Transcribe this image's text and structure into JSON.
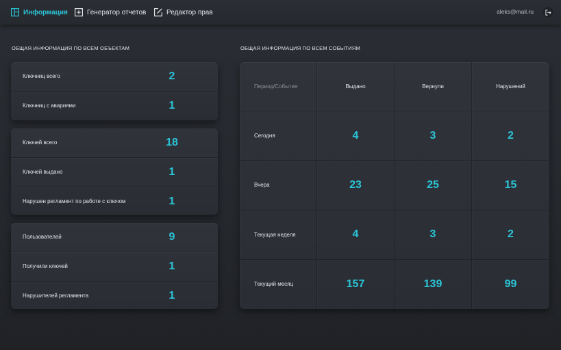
{
  "nav": {
    "items": [
      {
        "label": "Информация",
        "icon": "dashboard-icon",
        "active": true
      },
      {
        "label": "Генератор отчетов",
        "icon": "add-square-icon",
        "active": false
      },
      {
        "label": "Редактор прав",
        "icon": "edit-icon",
        "active": false
      }
    ],
    "user_email": "aleks@mail.ru",
    "logout_icon": "logout-icon"
  },
  "colors": {
    "accent": "#2bc4d7",
    "background": "#26292e",
    "card": "#2e3137"
  },
  "objects": {
    "title": "ОБЩАЯ ИНФОРМАЦИЯ ПО ВСЕМ ОБЪЕКТАМ",
    "cards": [
      {
        "rows": [
          {
            "label": "Ключниц всего",
            "value": "2"
          },
          {
            "label": "Ключниц с авариями",
            "value": "1"
          }
        ]
      },
      {
        "rows": [
          {
            "label": "Ключей всего",
            "value": "18"
          },
          {
            "label": "Ключей выдано",
            "value": "1"
          },
          {
            "label": "Нарушен регламент по работе с ключом",
            "value": "1"
          }
        ]
      },
      {
        "rows": [
          {
            "label": "Пользователей",
            "value": "9"
          },
          {
            "label": "Получили ключей",
            "value": "1"
          },
          {
            "label": "Нарушителей регламента",
            "value": "1"
          }
        ]
      }
    ]
  },
  "events": {
    "title": "ОБЩАЯ ИНФОРМАЦИЯ ПО ВСЕМ СОБЫТИЯМ",
    "headers": [
      "Период/Событие",
      "Выдано",
      "Вернули",
      "Нарушений"
    ],
    "rows": [
      {
        "period": "Сегодня",
        "values": [
          "4",
          "3",
          "2"
        ]
      },
      {
        "period": "Вчера",
        "values": [
          "23",
          "25",
          "15"
        ]
      },
      {
        "period": "Текущая неделя",
        "values": [
          "4",
          "3",
          "2"
        ]
      },
      {
        "period": "Текущий месяц",
        "values": [
          "157",
          "139",
          "99"
        ]
      }
    ]
  }
}
